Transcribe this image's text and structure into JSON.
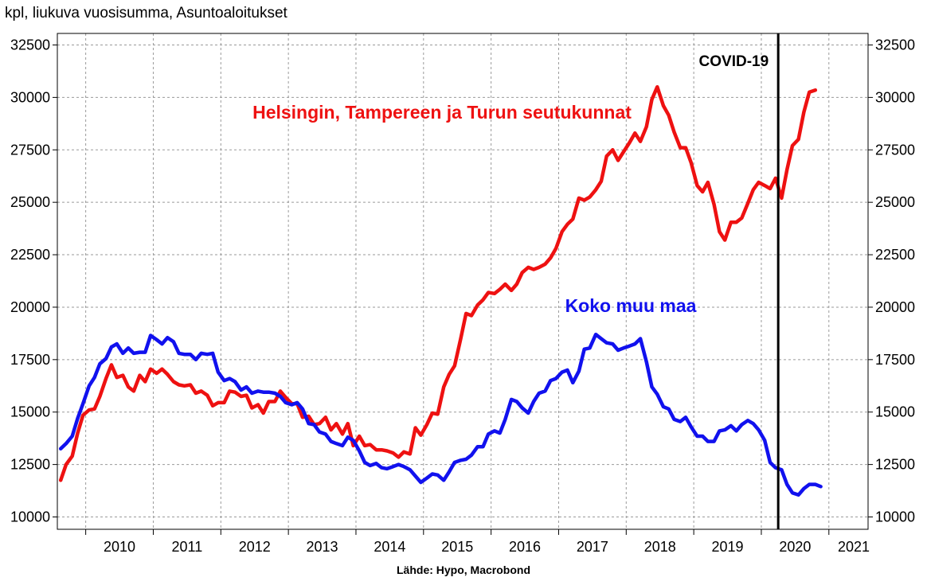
{
  "header": {
    "title": "kpl, liukuva vuosisumma, Asuntoaloitukset"
  },
  "footer": {
    "source": "Lähde: Hypo, Macrobond"
  },
  "colors": {
    "red": "#ee1111",
    "blue": "#1111ee",
    "grid": "#9a9a9a",
    "axis": "#000000"
  },
  "chart_data": {
    "type": "line",
    "title": "kpl, liukuva vuosisumma, Asuntoaloitukset",
    "xlabel": "",
    "ylabel": "",
    "ylim": [
      10000,
      32500
    ],
    "xlim": [
      2009.58,
      2021.58
    ],
    "y_ticks": [
      "32500",
      "30000",
      "27500",
      "25000",
      "22500",
      "20000",
      "17500",
      "15000",
      "12500",
      "10000"
    ],
    "x_ticks": [
      "2010",
      "2011",
      "2012",
      "2013",
      "2014",
      "2015",
      "2016",
      "2017",
      "2018",
      "2019",
      "2020",
      "2021"
    ],
    "grid": true,
    "dual_y_axis": true,
    "annotations": [
      {
        "text": "COVID-19",
        "x": 2020.25,
        "type": "vertical-line"
      },
      {
        "text": "Helsingin, Tampereen ja Turun seutukunnat",
        "series": "red"
      },
      {
        "text": "Koko muu maa",
        "series": "blue"
      }
    ],
    "series": [
      {
        "name": "Helsingin, Tampereen ja Turun seutukunnat",
        "color": "#ee1111",
        "points": [
          [
            2009.63,
            11750
          ],
          [
            2009.71,
            12500
          ],
          [
            2009.8,
            12900
          ],
          [
            2009.88,
            14000
          ],
          [
            2009.96,
            14850
          ],
          [
            2010.05,
            15100
          ],
          [
            2010.13,
            15150
          ],
          [
            2010.21,
            15750
          ],
          [
            2010.3,
            16600
          ],
          [
            2010.38,
            17250
          ],
          [
            2010.46,
            16650
          ],
          [
            2010.55,
            16750
          ],
          [
            2010.63,
            16200
          ],
          [
            2010.71,
            16000
          ],
          [
            2010.8,
            16750
          ],
          [
            2010.88,
            16450
          ],
          [
            2010.96,
            17050
          ],
          [
            2011.05,
            16850
          ],
          [
            2011.13,
            17050
          ],
          [
            2011.21,
            16800
          ],
          [
            2011.3,
            16450
          ],
          [
            2011.38,
            16300
          ],
          [
            2011.46,
            16250
          ],
          [
            2011.55,
            16300
          ],
          [
            2011.63,
            15900
          ],
          [
            2011.71,
            16000
          ],
          [
            2011.8,
            15800
          ],
          [
            2011.88,
            15300
          ],
          [
            2011.96,
            15450
          ],
          [
            2012.05,
            15450
          ],
          [
            2012.13,
            16000
          ],
          [
            2012.21,
            15950
          ],
          [
            2012.3,
            15750
          ],
          [
            2012.38,
            15800
          ],
          [
            2012.46,
            15200
          ],
          [
            2012.55,
            15350
          ],
          [
            2012.63,
            14950
          ],
          [
            2012.71,
            15500
          ],
          [
            2012.8,
            15500
          ],
          [
            2012.88,
            16000
          ],
          [
            2012.96,
            15700
          ],
          [
            2013.05,
            15400
          ],
          [
            2013.13,
            15400
          ],
          [
            2013.21,
            14750
          ],
          [
            2013.3,
            14800
          ],
          [
            2013.38,
            14400
          ],
          [
            2013.46,
            14450
          ],
          [
            2013.55,
            14750
          ],
          [
            2013.63,
            14150
          ],
          [
            2013.71,
            14450
          ],
          [
            2013.8,
            13950
          ],
          [
            2013.88,
            14450
          ],
          [
            2013.96,
            13400
          ],
          [
            2014.05,
            13850
          ],
          [
            2014.13,
            13400
          ],
          [
            2014.21,
            13450
          ],
          [
            2014.3,
            13200
          ],
          [
            2014.38,
            13200
          ],
          [
            2014.46,
            13150
          ],
          [
            2014.55,
            13050
          ],
          [
            2014.63,
            12850
          ],
          [
            2014.71,
            13100
          ],
          [
            2014.8,
            13000
          ],
          [
            2014.88,
            14250
          ],
          [
            2014.96,
            13900
          ],
          [
            2015.05,
            14400
          ],
          [
            2015.13,
            14950
          ],
          [
            2015.21,
            14900
          ],
          [
            2015.3,
            16200
          ],
          [
            2015.38,
            16800
          ],
          [
            2015.46,
            17200
          ],
          [
            2015.55,
            18500
          ],
          [
            2015.63,
            19700
          ],
          [
            2015.71,
            19600
          ],
          [
            2015.8,
            20100
          ],
          [
            2015.88,
            20350
          ],
          [
            2015.96,
            20700
          ],
          [
            2016.05,
            20650
          ],
          [
            2016.13,
            20850
          ],
          [
            2016.21,
            21100
          ],
          [
            2016.3,
            20800
          ],
          [
            2016.38,
            21100
          ],
          [
            2016.46,
            21650
          ],
          [
            2016.55,
            21900
          ],
          [
            2016.63,
            21800
          ],
          [
            2016.71,
            21900
          ],
          [
            2016.8,
            22050
          ],
          [
            2016.88,
            22350
          ],
          [
            2016.96,
            22800
          ],
          [
            2017.05,
            23600
          ],
          [
            2017.13,
            23950
          ],
          [
            2017.21,
            24200
          ],
          [
            2017.3,
            25200
          ],
          [
            2017.38,
            25100
          ],
          [
            2017.46,
            25250
          ],
          [
            2017.55,
            25600
          ],
          [
            2017.63,
            26000
          ],
          [
            2017.71,
            27200
          ],
          [
            2017.8,
            27500
          ],
          [
            2017.88,
            27000
          ],
          [
            2017.96,
            27400
          ],
          [
            2018.05,
            27850
          ],
          [
            2018.13,
            28300
          ],
          [
            2018.21,
            27900
          ],
          [
            2018.3,
            28600
          ],
          [
            2018.38,
            29900
          ],
          [
            2018.46,
            30500
          ],
          [
            2018.55,
            29600
          ],
          [
            2018.63,
            29150
          ],
          [
            2018.71,
            28350
          ],
          [
            2018.8,
            27600
          ],
          [
            2018.88,
            27600
          ],
          [
            2018.96,
            26900
          ],
          [
            2019.05,
            25800
          ],
          [
            2019.13,
            25500
          ],
          [
            2019.21,
            25950
          ],
          [
            2019.3,
            24900
          ],
          [
            2019.38,
            23600
          ],
          [
            2019.46,
            23200
          ],
          [
            2019.55,
            24050
          ],
          [
            2019.63,
            24050
          ],
          [
            2019.71,
            24250
          ],
          [
            2019.8,
            24950
          ],
          [
            2019.88,
            25600
          ],
          [
            2019.96,
            25950
          ],
          [
            2020.05,
            25800
          ],
          [
            2020.13,
            25650
          ],
          [
            2020.21,
            26150
          ],
          [
            2020.3,
            25200
          ],
          [
            2020.38,
            26550
          ],
          [
            2020.46,
            27700
          ],
          [
            2020.55,
            28000
          ],
          [
            2020.63,
            29300
          ],
          [
            2020.71,
            30250
          ],
          [
            2020.8,
            30350
          ]
        ]
      },
      {
        "name": "Koko muu maa",
        "color": "#1111ee",
        "points": [
          [
            2009.63,
            13250
          ],
          [
            2009.71,
            13500
          ],
          [
            2009.8,
            13850
          ],
          [
            2009.88,
            14700
          ],
          [
            2009.96,
            15400
          ],
          [
            2010.05,
            16250
          ],
          [
            2010.13,
            16650
          ],
          [
            2010.21,
            17300
          ],
          [
            2010.3,
            17550
          ],
          [
            2010.38,
            18100
          ],
          [
            2010.46,
            18250
          ],
          [
            2010.55,
            17800
          ],
          [
            2010.63,
            18050
          ],
          [
            2010.71,
            17800
          ],
          [
            2010.8,
            17850
          ],
          [
            2010.88,
            17850
          ],
          [
            2010.96,
            18650
          ],
          [
            2011.05,
            18450
          ],
          [
            2011.13,
            18250
          ],
          [
            2011.21,
            18550
          ],
          [
            2011.3,
            18350
          ],
          [
            2011.38,
            17800
          ],
          [
            2011.46,
            17750
          ],
          [
            2011.55,
            17750
          ],
          [
            2011.63,
            17500
          ],
          [
            2011.71,
            17800
          ],
          [
            2011.8,
            17750
          ],
          [
            2011.88,
            17800
          ],
          [
            2011.96,
            16900
          ],
          [
            2012.05,
            16500
          ],
          [
            2012.13,
            16600
          ],
          [
            2012.21,
            16450
          ],
          [
            2012.3,
            16050
          ],
          [
            2012.38,
            16200
          ],
          [
            2012.46,
            15900
          ],
          [
            2012.55,
            16000
          ],
          [
            2012.63,
            15950
          ],
          [
            2012.71,
            15950
          ],
          [
            2012.8,
            15900
          ],
          [
            2012.88,
            15750
          ],
          [
            2012.96,
            15450
          ],
          [
            2013.05,
            15350
          ],
          [
            2013.13,
            15450
          ],
          [
            2013.21,
            15150
          ],
          [
            2013.3,
            14450
          ],
          [
            2013.38,
            14400
          ],
          [
            2013.46,
            14050
          ],
          [
            2013.55,
            13950
          ],
          [
            2013.63,
            13600
          ],
          [
            2013.71,
            13500
          ],
          [
            2013.8,
            13400
          ],
          [
            2013.88,
            13800
          ],
          [
            2013.96,
            13650
          ],
          [
            2014.05,
            13150
          ],
          [
            2014.13,
            12600
          ],
          [
            2014.21,
            12450
          ],
          [
            2014.3,
            12550
          ],
          [
            2014.38,
            12350
          ],
          [
            2014.46,
            12300
          ],
          [
            2014.55,
            12400
          ],
          [
            2014.63,
            12500
          ],
          [
            2014.71,
            12400
          ],
          [
            2014.8,
            12250
          ],
          [
            2014.88,
            11950
          ],
          [
            2014.96,
            11650
          ],
          [
            2015.05,
            11850
          ],
          [
            2015.13,
            12050
          ],
          [
            2015.21,
            12000
          ],
          [
            2015.3,
            11750
          ],
          [
            2015.38,
            12150
          ],
          [
            2015.46,
            12600
          ],
          [
            2015.55,
            12700
          ],
          [
            2015.63,
            12750
          ],
          [
            2015.71,
            12950
          ],
          [
            2015.8,
            13350
          ],
          [
            2015.88,
            13350
          ],
          [
            2015.96,
            13950
          ],
          [
            2016.05,
            14100
          ],
          [
            2016.13,
            14000
          ],
          [
            2016.21,
            14650
          ],
          [
            2016.3,
            15600
          ],
          [
            2016.38,
            15500
          ],
          [
            2016.46,
            15200
          ],
          [
            2016.55,
            14950
          ],
          [
            2016.63,
            15500
          ],
          [
            2016.71,
            15900
          ],
          [
            2016.8,
            16000
          ],
          [
            2016.88,
            16500
          ],
          [
            2016.96,
            16600
          ],
          [
            2017.05,
            16900
          ],
          [
            2017.13,
            17000
          ],
          [
            2017.21,
            16400
          ],
          [
            2017.3,
            16950
          ],
          [
            2017.38,
            18000
          ],
          [
            2017.46,
            18050
          ],
          [
            2017.55,
            18700
          ],
          [
            2017.63,
            18500
          ],
          [
            2017.71,
            18300
          ],
          [
            2017.8,
            18250
          ],
          [
            2017.88,
            17950
          ],
          [
            2017.96,
            18050
          ],
          [
            2018.05,
            18150
          ],
          [
            2018.13,
            18250
          ],
          [
            2018.21,
            18500
          ],
          [
            2018.3,
            17400
          ],
          [
            2018.38,
            16200
          ],
          [
            2018.46,
            15850
          ],
          [
            2018.55,
            15250
          ],
          [
            2018.63,
            15150
          ],
          [
            2018.71,
            14650
          ],
          [
            2018.8,
            14550
          ],
          [
            2018.88,
            14750
          ],
          [
            2018.96,
            14300
          ],
          [
            2019.05,
            13850
          ],
          [
            2019.13,
            13850
          ],
          [
            2019.21,
            13600
          ],
          [
            2019.3,
            13600
          ],
          [
            2019.38,
            14100
          ],
          [
            2019.46,
            14150
          ],
          [
            2019.55,
            14350
          ],
          [
            2019.63,
            14100
          ],
          [
            2019.71,
            14400
          ],
          [
            2019.8,
            14600
          ],
          [
            2019.88,
            14450
          ],
          [
            2019.96,
            14150
          ],
          [
            2020.05,
            13650
          ],
          [
            2020.13,
            12600
          ],
          [
            2020.21,
            12350
          ],
          [
            2020.3,
            12250
          ],
          [
            2020.38,
            11550
          ],
          [
            2020.46,
            11150
          ],
          [
            2020.55,
            11050
          ],
          [
            2020.63,
            11350
          ],
          [
            2020.71,
            11550
          ],
          [
            2020.8,
            11550
          ],
          [
            2020.88,
            11450
          ]
        ]
      }
    ]
  }
}
